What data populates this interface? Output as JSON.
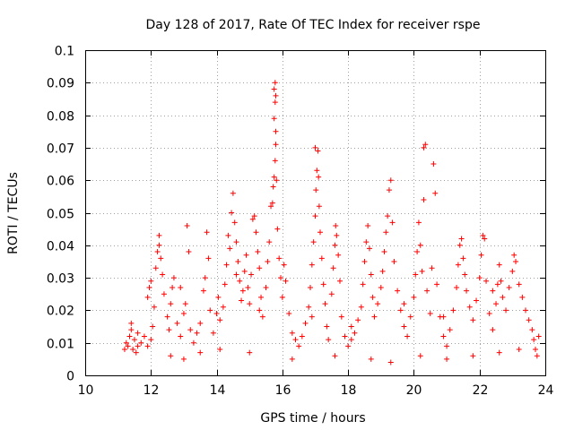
{
  "chart_data": {
    "type": "scatter",
    "title": "Day 128 of 2017, Rate Of TEC Index for receiver rspe",
    "xlabel": "GPS time / hours",
    "ylabel": "ROTI / TECUs",
    "xlim": [
      10,
      24
    ],
    "ylim": [
      0,
      0.1
    ],
    "grid": true,
    "marker": "+",
    "color": "#ff0000",
    "xticks": [
      10,
      12,
      14,
      16,
      18,
      20,
      22,
      24
    ],
    "xtick_labels": [
      "10",
      "12",
      "14",
      "16",
      "18",
      "20",
      "22",
      "24"
    ],
    "yticks": [
      0,
      0.01,
      0.02,
      0.03,
      0.04,
      0.05,
      0.06,
      0.07,
      0.08,
      0.09,
      0.1
    ],
    "ytick_labels": [
      "0",
      "0.01",
      "0.02",
      "0.03",
      "0.04",
      "0.05",
      "0.06",
      "0.07",
      "0.08",
      "0.09",
      "0.1"
    ],
    "series": [
      {
        "name": "ROTI",
        "points": [
          [
            11.3,
            0.009
          ],
          [
            11.35,
            0.012
          ],
          [
            11.4,
            0.014
          ],
          [
            11.45,
            0.008
          ],
          [
            11.5,
            0.011
          ],
          [
            11.55,
            0.007
          ],
          [
            11.6,
            0.013
          ],
          [
            11.7,
            0.01
          ],
          [
            11.8,
            0.012
          ],
          [
            11.9,
            0.009
          ],
          [
            12.0,
            0.011
          ],
          [
            12.05,
            0.015
          ],
          [
            12.1,
            0.021
          ],
          [
            11.9,
            0.024
          ],
          [
            11.95,
            0.027
          ],
          [
            12.0,
            0.029
          ],
          [
            12.15,
            0.033
          ],
          [
            12.2,
            0.038
          ],
          [
            12.25,
            0.04
          ],
          [
            12.25,
            0.043
          ],
          [
            12.3,
            0.036
          ],
          [
            12.35,
            0.031
          ],
          [
            12.4,
            0.025
          ],
          [
            12.5,
            0.018
          ],
          [
            12.55,
            0.014
          ],
          [
            12.6,
            0.022
          ],
          [
            12.65,
            0.027
          ],
          [
            12.7,
            0.03
          ],
          [
            12.8,
            0.016
          ],
          [
            12.9,
            0.012
          ],
          [
            13.0,
            0.019
          ],
          [
            13.05,
            0.022
          ],
          [
            13.1,
            0.046
          ],
          [
            13.15,
            0.038
          ],
          [
            13.2,
            0.014
          ],
          [
            13.3,
            0.01
          ],
          [
            13.4,
            0.013
          ],
          [
            13.5,
            0.016
          ],
          [
            13.6,
            0.026
          ],
          [
            13.65,
            0.03
          ],
          [
            13.7,
            0.044
          ],
          [
            13.75,
            0.036
          ],
          [
            13.8,
            0.02
          ],
          [
            13.9,
            0.013
          ],
          [
            14.0,
            0.019
          ],
          [
            14.05,
            0.024
          ],
          [
            14.1,
            0.017
          ],
          [
            14.2,
            0.021
          ],
          [
            14.25,
            0.028
          ],
          [
            14.3,
            0.034
          ],
          [
            14.35,
            0.043
          ],
          [
            14.4,
            0.039
          ],
          [
            14.45,
            0.05
          ],
          [
            14.5,
            0.056
          ],
          [
            14.55,
            0.047
          ],
          [
            14.6,
            0.041
          ],
          [
            14.65,
            0.035
          ],
          [
            14.7,
            0.029
          ],
          [
            14.75,
            0.023
          ],
          [
            14.8,
            0.026
          ],
          [
            14.85,
            0.032
          ],
          [
            14.9,
            0.037
          ],
          [
            14.95,
            0.027
          ],
          [
            15.0,
            0.022
          ],
          [
            15.05,
            0.031
          ],
          [
            15.1,
            0.048
          ],
          [
            15.15,
            0.049
          ],
          [
            15.2,
            0.044
          ],
          [
            15.25,
            0.038
          ],
          [
            15.3,
            0.033
          ],
          [
            15.35,
            0.024
          ],
          [
            15.4,
            0.018
          ],
          [
            15.5,
            0.027
          ],
          [
            15.55,
            0.035
          ],
          [
            15.6,
            0.041
          ],
          [
            15.65,
            0.052
          ],
          [
            15.7,
            0.053
          ],
          [
            15.72,
            0.058
          ],
          [
            15.75,
            0.061
          ],
          [
            15.78,
            0.066
          ],
          [
            15.8,
            0.071
          ],
          [
            15.75,
            0.079
          ],
          [
            15.78,
            0.084
          ],
          [
            15.8,
            0.086
          ],
          [
            15.75,
            0.088
          ],
          [
            15.78,
            0.09
          ],
          [
            15.8,
            0.075
          ],
          [
            15.82,
            0.06
          ],
          [
            15.85,
            0.045
          ],
          [
            15.9,
            0.036
          ],
          [
            15.95,
            0.03
          ],
          [
            16.0,
            0.024
          ],
          [
            16.05,
            0.034
          ],
          [
            16.1,
            0.029
          ],
          [
            16.2,
            0.019
          ],
          [
            16.3,
            0.013
          ],
          [
            16.4,
            0.011
          ],
          [
            16.5,
            0.009
          ],
          [
            16.6,
            0.012
          ],
          [
            16.7,
            0.016
          ],
          [
            16.8,
            0.021
          ],
          [
            16.85,
            0.027
          ],
          [
            16.9,
            0.034
          ],
          [
            16.95,
            0.041
          ],
          [
            17.0,
            0.049
          ],
          [
            17.02,
            0.057
          ],
          [
            17.05,
            0.063
          ],
          [
            17.08,
            0.069
          ],
          [
            17.0,
            0.07
          ],
          [
            17.1,
            0.061
          ],
          [
            17.12,
            0.052
          ],
          [
            17.15,
            0.044
          ],
          [
            17.2,
            0.036
          ],
          [
            17.25,
            0.028
          ],
          [
            17.3,
            0.022
          ],
          [
            17.35,
            0.015
          ],
          [
            17.4,
            0.011
          ],
          [
            17.5,
            0.025
          ],
          [
            17.55,
            0.033
          ],
          [
            17.6,
            0.04
          ],
          [
            17.62,
            0.046
          ],
          [
            17.65,
            0.043
          ],
          [
            17.7,
            0.037
          ],
          [
            17.75,
            0.029
          ],
          [
            17.8,
            0.018
          ],
          [
            17.9,
            0.012
          ],
          [
            18.0,
            0.009
          ],
          [
            18.1,
            0.011
          ],
          [
            18.2,
            0.013
          ],
          [
            18.3,
            0.017
          ],
          [
            18.4,
            0.021
          ],
          [
            18.45,
            0.028
          ],
          [
            18.5,
            0.035
          ],
          [
            18.55,
            0.041
          ],
          [
            18.6,
            0.046
          ],
          [
            18.65,
            0.039
          ],
          [
            18.7,
            0.031
          ],
          [
            18.75,
            0.024
          ],
          [
            18.8,
            0.018
          ],
          [
            18.9,
            0.022
          ],
          [
            19.0,
            0.027
          ],
          [
            19.05,
            0.032
          ],
          [
            19.1,
            0.038
          ],
          [
            19.15,
            0.044
          ],
          [
            19.2,
            0.049
          ],
          [
            19.25,
            0.057
          ],
          [
            19.3,
            0.06
          ],
          [
            19.35,
            0.047
          ],
          [
            19.4,
            0.035
          ],
          [
            19.5,
            0.026
          ],
          [
            19.6,
            0.02
          ],
          [
            19.7,
            0.015
          ],
          [
            19.8,
            0.012
          ],
          [
            19.9,
            0.018
          ],
          [
            20.0,
            0.024
          ],
          [
            20.05,
            0.031
          ],
          [
            20.1,
            0.038
          ],
          [
            20.15,
            0.047
          ],
          [
            20.2,
            0.04
          ],
          [
            20.25,
            0.032
          ],
          [
            20.3,
            0.054
          ],
          [
            20.3,
            0.07
          ],
          [
            20.35,
            0.071
          ],
          [
            20.4,
            0.026
          ],
          [
            20.5,
            0.019
          ],
          [
            20.55,
            0.033
          ],
          [
            20.6,
            0.065
          ],
          [
            20.65,
            0.056
          ],
          [
            20.7,
            0.028
          ],
          [
            20.8,
            0.018
          ],
          [
            20.9,
            0.012
          ],
          [
            21.0,
            0.009
          ],
          [
            21.1,
            0.014
          ],
          [
            21.2,
            0.02
          ],
          [
            21.3,
            0.027
          ],
          [
            21.35,
            0.034
          ],
          [
            21.4,
            0.04
          ],
          [
            21.45,
            0.042
          ],
          [
            21.5,
            0.036
          ],
          [
            21.55,
            0.031
          ],
          [
            21.6,
            0.026
          ],
          [
            21.7,
            0.021
          ],
          [
            21.8,
            0.017
          ],
          [
            21.9,
            0.023
          ],
          [
            22.0,
            0.03
          ],
          [
            22.05,
            0.037
          ],
          [
            22.1,
            0.043
          ],
          [
            22.15,
            0.042
          ],
          [
            22.2,
            0.029
          ],
          [
            22.3,
            0.019
          ],
          [
            22.4,
            0.014
          ],
          [
            22.5,
            0.022
          ],
          [
            22.55,
            0.028
          ],
          [
            22.6,
            0.034
          ],
          [
            22.65,
            0.029
          ],
          [
            22.7,
            0.024
          ],
          [
            22.8,
            0.02
          ],
          [
            22.9,
            0.027
          ],
          [
            23.0,
            0.032
          ],
          [
            23.05,
            0.037
          ],
          [
            23.1,
            0.035
          ],
          [
            23.2,
            0.028
          ],
          [
            23.3,
            0.024
          ],
          [
            23.4,
            0.02
          ],
          [
            23.5,
            0.017
          ],
          [
            23.6,
            0.014
          ],
          [
            23.65,
            0.011
          ],
          [
            23.7,
            0.008
          ],
          [
            23.75,
            0.006
          ],
          [
            12.6,
            0.006
          ],
          [
            13.0,
            0.005
          ],
          [
            13.5,
            0.007
          ],
          [
            14.1,
            0.008
          ],
          [
            15.0,
            0.007
          ],
          [
            16.3,
            0.005
          ],
          [
            17.6,
            0.006
          ],
          [
            18.7,
            0.005
          ],
          [
            19.3,
            0.004
          ],
          [
            20.2,
            0.006
          ],
          [
            21.0,
            0.005
          ],
          [
            21.8,
            0.006
          ],
          [
            22.6,
            0.007
          ],
          [
            23.2,
            0.008
          ],
          [
            11.4,
            0.016
          ],
          [
            12.9,
            0.027
          ],
          [
            14.6,
            0.031
          ],
          [
            15.3,
            0.02
          ],
          [
            16.9,
            0.018
          ],
          [
            18.1,
            0.015
          ],
          [
            19.7,
            0.022
          ],
          [
            20.9,
            0.018
          ],
          [
            22.4,
            0.026
          ],
          [
            23.8,
            0.012
          ],
          [
            11.2,
            0.008
          ],
          [
            11.25,
            0.01
          ],
          [
            11.6,
            0.009
          ]
        ]
      }
    ]
  }
}
